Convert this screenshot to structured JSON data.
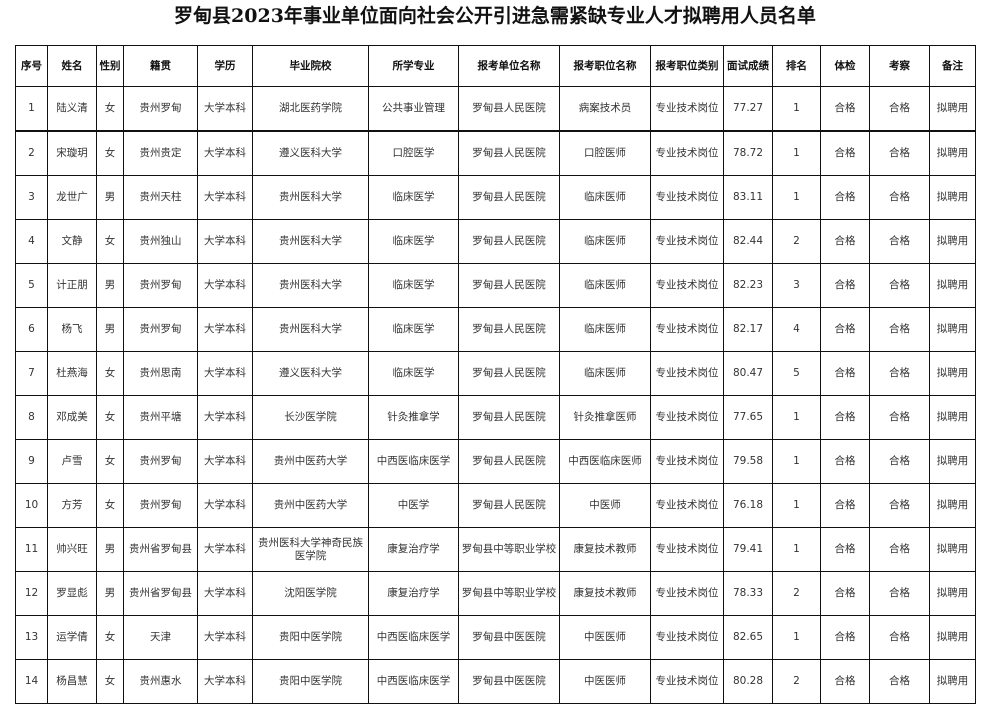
{
  "title": "罗甸县2023年事业单位面向社会公开引进急需紧缺专业人才拟聘用人员名单",
  "columns": [
    "序号",
    "姓名",
    "性别",
    "籍贯",
    "学历",
    "毕业院校",
    "所学专业",
    "报考单位名称",
    "报考职位名称",
    "报考职位类别",
    "面试成绩",
    "排名",
    "体检",
    "考察",
    "备注"
  ],
  "rows": [
    [
      "1",
      "陆义清",
      "女",
      "贵州罗甸",
      "大学本科",
      "湖北医药学院",
      "公共事业管理",
      "罗甸县人民医院",
      "病案技术员",
      "专业技术岗位",
      "77.27",
      "1",
      "合格",
      "合格",
      "拟聘用"
    ],
    [
      "2",
      "宋璇玥",
      "女",
      "贵州贵定",
      "大学本科",
      "遵义医科大学",
      "口腔医学",
      "罗甸县人民医院",
      "口腔医师",
      "专业技术岗位",
      "78.72",
      "1",
      "合格",
      "合格",
      "拟聘用"
    ],
    [
      "3",
      "龙世广",
      "男",
      "贵州天柱",
      "大学本科",
      "贵州医科大学",
      "临床医学",
      "罗甸县人民医院",
      "临床医师",
      "专业技术岗位",
      "83.11",
      "1",
      "合格",
      "合格",
      "拟聘用"
    ],
    [
      "4",
      "文静",
      "女",
      "贵州独山",
      "大学本科",
      "贵州医科大学",
      "临床医学",
      "罗甸县人民医院",
      "临床医师",
      "专业技术岗位",
      "82.44",
      "2",
      "合格",
      "合格",
      "拟聘用"
    ],
    [
      "5",
      "计正朋",
      "男",
      "贵州罗甸",
      "大学本科",
      "贵州医科大学",
      "临床医学",
      "罗甸县人民医院",
      "临床医师",
      "专业技术岗位",
      "82.23",
      "3",
      "合格",
      "合格",
      "拟聘用"
    ],
    [
      "6",
      "杨飞",
      "男",
      "贵州罗甸",
      "大学本科",
      "贵州医科大学",
      "临床医学",
      "罗甸县人民医院",
      "临床医师",
      "专业技术岗位",
      "82.17",
      "4",
      "合格",
      "合格",
      "拟聘用"
    ],
    [
      "7",
      "杜燕海",
      "女",
      "贵州思南",
      "大学本科",
      "遵义医科大学",
      "临床医学",
      "罗甸县人民医院",
      "临床医师",
      "专业技术岗位",
      "80.47",
      "5",
      "合格",
      "合格",
      "拟聘用"
    ],
    [
      "8",
      "邓成美",
      "女",
      "贵州平塘",
      "大学本科",
      "长沙医学院",
      "针灸推拿学",
      "罗甸县人民医院",
      "针灸推拿医师",
      "专业技术岗位",
      "77.65",
      "1",
      "合格",
      "合格",
      "拟聘用"
    ],
    [
      "9",
      "卢雪",
      "女",
      "贵州罗甸",
      "大学本科",
      "贵州中医药大学",
      "中西医临床医学",
      "罗甸县人民医院",
      "中西医临床医师",
      "专业技术岗位",
      "79.58",
      "1",
      "合格",
      "合格",
      "拟聘用"
    ],
    [
      "10",
      "方芳",
      "女",
      "贵州罗甸",
      "大学本科",
      "贵州中医药大学",
      "中医学",
      "罗甸县人民医院",
      "中医师",
      "专业技术岗位",
      "76.18",
      "1",
      "合格",
      "合格",
      "拟聘用"
    ],
    [
      "11",
      "帅兴旺",
      "男",
      "贵州省罗甸县",
      "大学本科",
      "贵州医科大学神奇民族医学院",
      "康复治疗学",
      "罗甸县中等职业学校",
      "康复技术教师",
      "专业技术岗位",
      "79.41",
      "1",
      "合格",
      "合格",
      "拟聘用"
    ],
    [
      "12",
      "罗显彪",
      "男",
      "贵州省罗甸县",
      "大学本科",
      "沈阳医学院",
      "康复治疗学",
      "罗甸县中等职业学校",
      "康复技术教师",
      "专业技术岗位",
      "78.33",
      "2",
      "合格",
      "合格",
      "拟聘用"
    ],
    [
      "13",
      "运学倩",
      "女",
      "天津",
      "大学本科",
      "贵阳中医学院",
      "中西医临床医学",
      "罗甸县中医医院",
      "中医医师",
      "专业技术岗位",
      "82.65",
      "1",
      "合格",
      "合格",
      "拟聘用"
    ],
    [
      "14",
      "杨昌慧",
      "女",
      "贵州惠水",
      "大学本科",
      "贵阳中医学院",
      "中西医临床医学",
      "罗甸县中医医院",
      "中医医师",
      "专业技术岗位",
      "80.28",
      "2",
      "合格",
      "合格",
      "拟聘用"
    ]
  ]
}
